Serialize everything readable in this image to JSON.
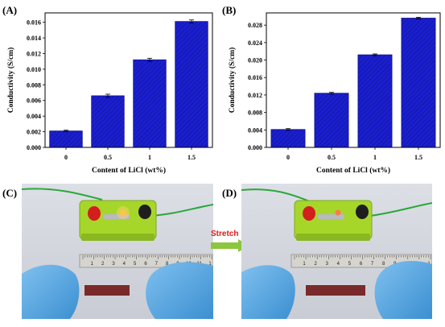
{
  "panels": {
    "a": "(A)",
    "b": "(B)",
    "c": "(C)",
    "d": "(D)"
  },
  "colors": {
    "bar": "#1a1fd0",
    "bar_dark": "#10128a",
    "stretch_text": "#e01818",
    "arrow_green": "#8cc63f"
  },
  "chart_data": [
    {
      "type": "bar",
      "categories": [
        "0",
        "0.5",
        "1",
        "1.5"
      ],
      "values": [
        0.0021,
        0.0066,
        0.0112,
        0.0161
      ],
      "errors": [
        0.0001,
        0.0002,
        0.0002,
        0.0002
      ],
      "xlabel": "Content of LiCl (wt%)",
      "ylabel": "Conductivity (S/cm)",
      "ylim": [
        0,
        0.0172
      ],
      "yticks": [
        0.0,
        0.002,
        0.004,
        0.006,
        0.008,
        0.01,
        0.012,
        0.014,
        0.016
      ],
      "ytick_labels": [
        "0.000",
        "0.002",
        "0.004",
        "0.006",
        "0.008",
        "0.010",
        "0.012",
        "0.014",
        "0.016"
      ]
    },
    {
      "type": "bar",
      "categories": [
        "0",
        "0.5",
        "1",
        "1.5"
      ],
      "values": [
        0.0041,
        0.0124,
        0.0212,
        0.0296
      ],
      "errors": [
        0.0002,
        0.0002,
        0.0002,
        0.0002
      ],
      "xlabel": "Content of LiCl (wt%)",
      "ylabel": "Conductivity (S/cm)",
      "ylim": [
        0,
        0.0308
      ],
      "yticks": [
        0.0,
        0.004,
        0.008,
        0.012,
        0.016,
        0.02,
        0.024,
        0.028
      ],
      "ytick_labels": [
        "0.000",
        "0.004",
        "0.008",
        "0.012",
        "0.016",
        "0.020",
        "0.024",
        "0.028"
      ]
    }
  ],
  "photos": {
    "middle_label": "Stretch",
    "ruler_numbers": [
      "1",
      "2",
      "3",
      "4",
      "5",
      "6",
      "7",
      "8",
      "9",
      "10",
      "11",
      "1"
    ]
  }
}
